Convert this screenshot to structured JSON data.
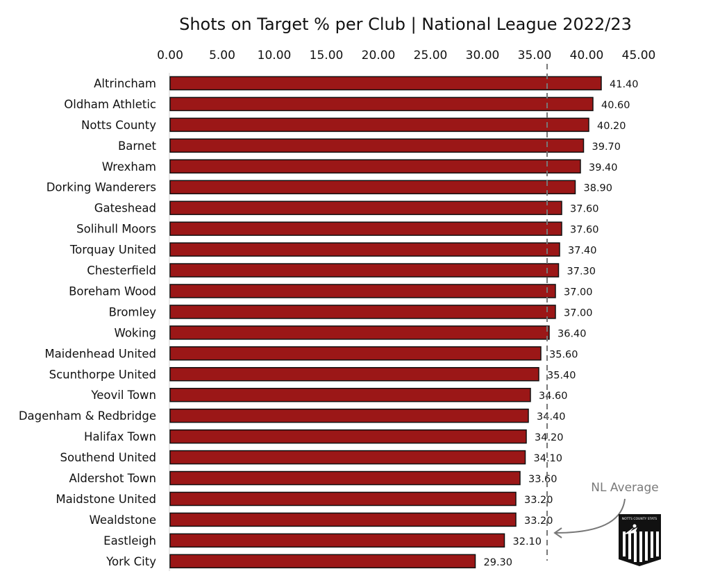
{
  "chart_data": {
    "type": "bar",
    "orientation": "horizontal",
    "title": "Shots on Target % per Club | National League 2022/23",
    "categories": [
      "Altrincham",
      "Oldham Athletic",
      "Notts County",
      "Barnet",
      "Wrexham",
      "Dorking Wanderers",
      "Gateshead",
      "Solihull Moors",
      "Torquay United",
      "Chesterfield",
      "Boreham Wood",
      "Bromley",
      "Woking",
      "Maidenhead United",
      "Scunthorpe United",
      "Yeovil Town",
      "Dagenham & Redbridge",
      "Halifax Town",
      "Southend United",
      "Aldershot Town",
      "Maidstone United",
      "Wealdstone",
      "Eastleigh",
      "York City"
    ],
    "values": [
      41.4,
      40.6,
      40.2,
      39.7,
      39.4,
      38.9,
      37.6,
      37.6,
      37.4,
      37.3,
      37.0,
      37.0,
      36.4,
      35.6,
      35.4,
      34.6,
      34.4,
      34.2,
      34.1,
      33.6,
      33.2,
      33.2,
      32.1,
      29.3
    ],
    "value_labels": [
      "41.40",
      "40.60",
      "40.20",
      "39.70",
      "39.40",
      "38.90",
      "37.60",
      "37.60",
      "37.40",
      "37.30",
      "37.00",
      "37.00",
      "36.40",
      "35.60",
      "35.40",
      "34.60",
      "34.40",
      "34.20",
      "34.10",
      "33.60",
      "33.20",
      "33.20",
      "32.10",
      "29.30"
    ],
    "xlim": [
      0,
      45
    ],
    "x_ticks": [
      0,
      5,
      10,
      15,
      20,
      25,
      30,
      35,
      40,
      45
    ],
    "x_tick_labels": [
      "0.00",
      "5.00",
      "10.00",
      "15.00",
      "20.00",
      "25.00",
      "30.00",
      "35.00",
      "40.00",
      "45.00"
    ],
    "x_axis_position": "top",
    "grid": false,
    "average": {
      "label": "NL Average",
      "value": 36.2
    },
    "colors": {
      "bar": "#9b1717",
      "bar_outline": "#111111",
      "average_line": "#777777"
    }
  },
  "logo": {
    "text": "NOTTS COUNTY STATS"
  }
}
